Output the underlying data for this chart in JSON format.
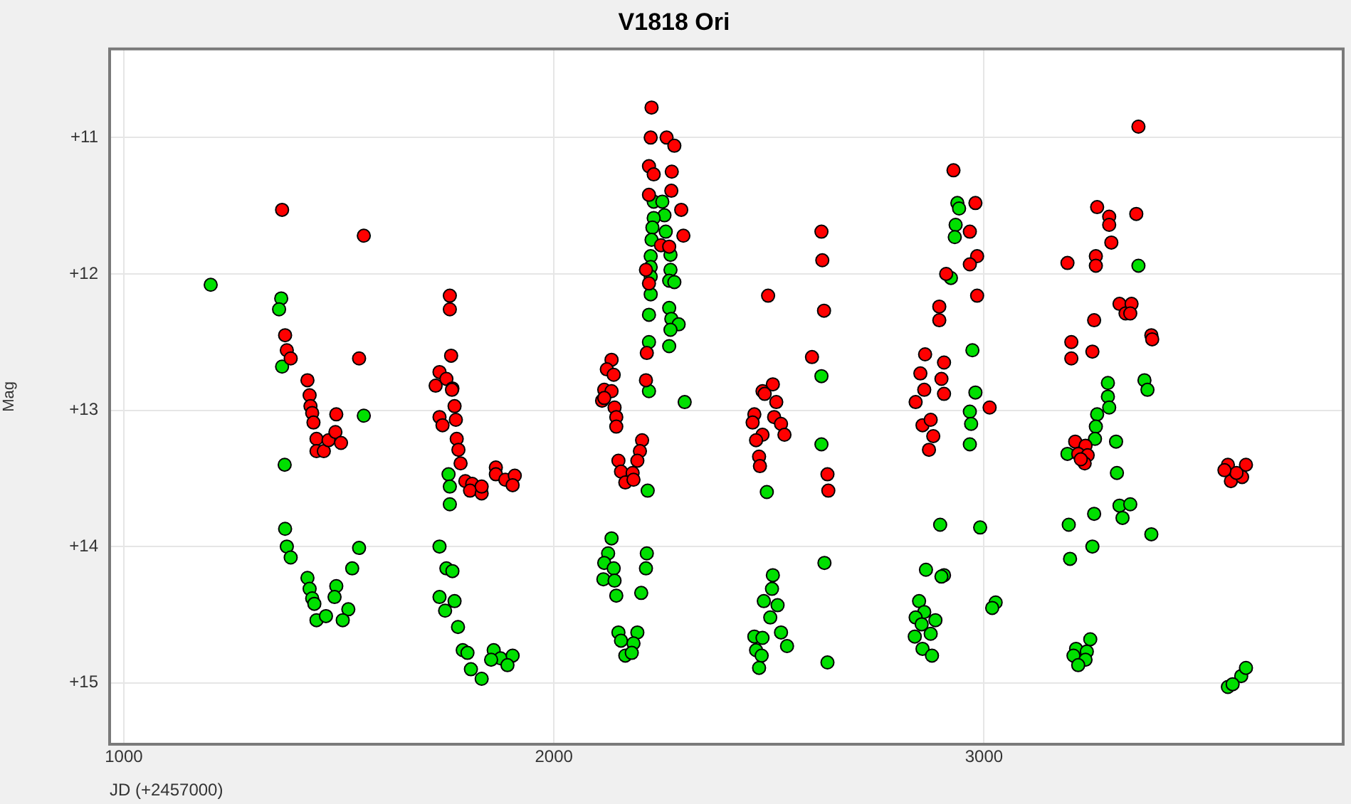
{
  "chart_data": {
    "type": "scatter",
    "title": "V1818 Ori",
    "xlabel": "JD (+2457000)",
    "ylabel": "Mag",
    "xlim": [
      967,
      3835
    ],
    "ylim": [
      15.45,
      10.35
    ],
    "xticks": [
      1000,
      2000,
      3000
    ],
    "yticks": [
      {
        "value": 11,
        "label": "+11"
      },
      {
        "value": 12,
        "label": "+12"
      },
      {
        "value": 13,
        "label": "+13"
      },
      {
        "value": 14,
        "label": "+14"
      },
      {
        "value": 15,
        "label": "+15"
      }
    ],
    "grid": true,
    "marker": "circle",
    "series": [
      {
        "color": "#ff0000",
        "x": [
          1368,
          1558,
          1375,
          1379,
          1388,
          1547,
          1427,
          1432,
          1434,
          1438,
          1441,
          1494,
          1448,
          1448,
          1465,
          1476,
          1492,
          1505,
          1758,
          1758,
          1761,
          1734,
          1750,
          1725,
          1764,
          1769,
          1763,
          1734,
          1741,
          1772,
          1774,
          1778,
          1783,
          1794,
          1810,
          1805,
          1832,
          1832,
          1865,
          1865,
          1887,
          1909,
          1904,
          2227,
          2225,
          2262,
          2280,
          2221,
          2232,
          2274,
          2273,
          2221,
          2296,
          2301,
          2249,
          2268,
          2214,
          2221,
          2216,
          2214,
          2134,
          2123,
          2139,
          2117,
          2134,
          2112,
          2117,
          2141,
          2145,
          2145,
          2205,
          2200,
          2150,
          2194,
          2156,
          2183,
          2166,
          2185,
          2498,
          2622,
          2624,
          2628,
          2600,
          2509,
          2485,
          2490,
          2517,
          2466,
          2512,
          2462,
          2528,
          2485,
          2536,
          2470,
          2477,
          2479,
          2636,
          2638,
          2863,
          2852,
          2907,
          2861,
          2901,
          2896,
          2896,
          2841,
          2907,
          2857,
          2876,
          2882,
          2872,
          2929,
          2980,
          2967,
          2984,
          2967,
          2912,
          2984,
          3013,
          3359,
          3263,
          3291,
          3291,
          3354,
          3296,
          3194,
          3260,
          3260,
          3256,
          3203,
          3203,
          3252,
          3315,
          3329,
          3343,
          3340,
          3389,
          3391,
          3212,
          3236,
          3219,
          3241,
          3234,
          3225,
          3567,
          3609,
          3574,
          3600,
          3587,
          3559
        ],
        "values": [
          11.53,
          11.72,
          12.45,
          12.56,
          12.62,
          12.62,
          12.78,
          12.89,
          12.97,
          13.02,
          13.09,
          13.03,
          13.21,
          13.3,
          13.3,
          13.22,
          13.16,
          13.24,
          12.16,
          12.26,
          12.6,
          12.72,
          12.77,
          12.82,
          12.84,
          12.97,
          12.85,
          13.05,
          13.11,
          13.07,
          13.21,
          13.29,
          13.39,
          13.52,
          13.54,
          13.59,
          13.61,
          13.56,
          13.42,
          13.47,
          13.51,
          13.48,
          13.55,
          10.78,
          11.0,
          11.0,
          11.06,
          11.21,
          11.27,
          11.25,
          11.39,
          11.42,
          11.53,
          11.72,
          11.79,
          11.8,
          11.97,
          12.07,
          12.58,
          12.78,
          12.63,
          12.7,
          12.74,
          12.85,
          12.86,
          12.93,
          12.91,
          12.98,
          13.05,
          13.12,
          13.22,
          13.3,
          13.37,
          13.37,
          13.45,
          13.46,
          13.53,
          13.51,
          12.16,
          11.69,
          11.9,
          12.27,
          12.61,
          12.81,
          12.86,
          12.88,
          12.94,
          13.03,
          13.05,
          13.09,
          13.1,
          13.18,
          13.18,
          13.22,
          13.34,
          13.41,
          13.47,
          13.59,
          12.59,
          12.73,
          12.65,
          12.85,
          12.77,
          12.34,
          12.24,
          12.94,
          12.88,
          13.11,
          13.07,
          13.19,
          13.29,
          11.24,
          11.48,
          11.69,
          11.87,
          11.93,
          12.0,
          12.16,
          12.98,
          10.92,
          11.51,
          11.58,
          11.64,
          11.56,
          11.77,
          11.92,
          11.87,
          11.94,
          12.34,
          12.5,
          12.62,
          12.57,
          12.22,
          12.29,
          12.22,
          12.29,
          12.45,
          12.48,
          13.23,
          13.26,
          13.32,
          13.33,
          13.39,
          13.36,
          13.4,
          13.4,
          13.52,
          13.49,
          13.46,
          13.44
        ]
      },
      {
        "color": "#00e000",
        "x": [
          1202,
          1366,
          1361,
          1368,
          1558,
          1374,
          1375,
          1379,
          1388,
          1547,
          1531,
          1427,
          1432,
          1494,
          1438,
          1490,
          1443,
          1522,
          1448,
          1470,
          1509,
          1755,
          1758,
          1758,
          1734,
          1750,
          1764,
          1734,
          1769,
          1747,
          1777,
          1788,
          1799,
          1807,
          1832,
          1860,
          1876,
          1904,
          1892,
          1854,
          2232,
          2252,
          2257,
          2232,
          2229,
          2260,
          2227,
          2271,
          2225,
          2225,
          2271,
          2225,
          2268,
          2280,
          2225,
          2221,
          2268,
          2273,
          2290,
          2271,
          2221,
          2268,
          2221,
          2304,
          2218,
          2134,
          2126,
          2117,
          2139,
          2115,
          2141,
          2145,
          2216,
          2214,
          2203,
          2150,
          2194,
          2156,
          2185,
          2166,
          2181,
          2622,
          2622,
          2495,
          2629,
          2509,
          2507,
          2488,
          2520,
          2503,
          2528,
          2466,
          2485,
          2542,
          2470,
          2483,
          2477,
          2636,
          2938,
          2942,
          2934,
          2932,
          2923,
          2973,
          2980,
          2967,
          2970,
          2967,
          2898,
          2991,
          2907,
          3027,
          3019,
          2865,
          2901,
          2849,
          2861,
          2841,
          2887,
          2855,
          2876,
          2839,
          2857,
          2879,
          3359,
          3288,
          3288,
          3373,
          3380,
          3291,
          3263,
          3260,
          3258,
          3307,
          3194,
          3309,
          3256,
          3315,
          3340,
          3322,
          3197,
          3389,
          3252,
          3200,
          3247,
          3214,
          3239,
          3208,
          3236,
          3219,
          3567,
          3598,
          3609,
          3578
        ],
        "values": [
          12.08,
          12.18,
          12.26,
          12.68,
          13.04,
          13.4,
          13.87,
          14.0,
          14.08,
          14.01,
          14.16,
          14.23,
          14.31,
          14.29,
          14.38,
          14.37,
          14.42,
          14.46,
          14.54,
          14.51,
          14.54,
          13.47,
          13.56,
          13.69,
          14.0,
          14.16,
          14.18,
          14.37,
          14.4,
          14.47,
          14.59,
          14.76,
          14.78,
          14.9,
          14.97,
          14.76,
          14.82,
          14.8,
          14.87,
          14.83,
          11.47,
          11.47,
          11.57,
          11.59,
          11.66,
          11.69,
          11.75,
          11.86,
          11.87,
          11.95,
          11.97,
          12.02,
          12.05,
          12.06,
          12.15,
          12.3,
          12.25,
          12.33,
          12.37,
          12.41,
          12.5,
          12.53,
          12.86,
          12.94,
          13.59,
          13.94,
          14.05,
          14.12,
          14.16,
          14.24,
          14.25,
          14.36,
          14.05,
          14.16,
          14.34,
          14.63,
          14.63,
          14.69,
          14.71,
          14.8,
          14.78,
          12.75,
          13.25,
          13.6,
          14.12,
          14.21,
          14.31,
          14.4,
          14.43,
          14.52,
          14.63,
          14.66,
          14.67,
          14.73,
          14.76,
          14.8,
          14.89,
          14.85,
          11.48,
          11.52,
          11.64,
          11.73,
          12.03,
          12.56,
          12.87,
          13.01,
          13.1,
          13.25,
          13.84,
          13.86,
          14.21,
          14.41,
          14.45,
          14.17,
          14.22,
          14.4,
          14.48,
          14.52,
          14.54,
          14.57,
          14.64,
          14.66,
          14.75,
          14.8,
          11.94,
          12.8,
          12.9,
          12.78,
          12.85,
          12.98,
          13.03,
          13.12,
          13.21,
          13.23,
          13.32,
          13.46,
          13.76,
          13.7,
          13.69,
          13.79,
          13.84,
          13.91,
          14.0,
          14.09,
          14.68,
          14.75,
          14.77,
          14.8,
          14.83,
          14.87,
          15.03,
          14.95,
          14.89,
          15.01
        ]
      }
    ]
  }
}
